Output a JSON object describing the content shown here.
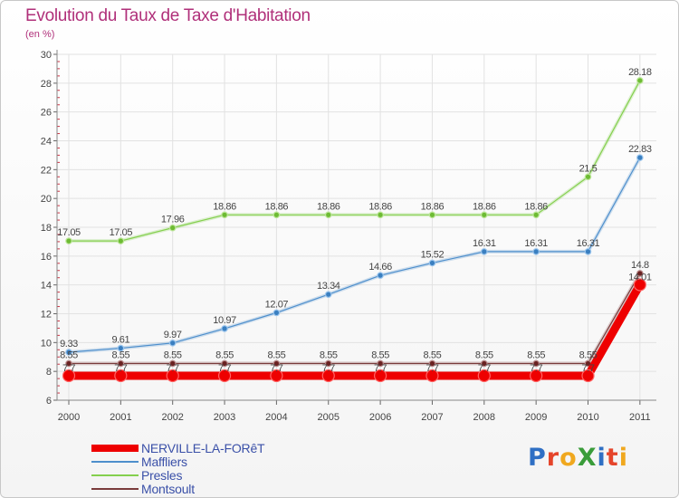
{
  "header": {
    "title": "Evolution du Taux de Taxe d'Habitation",
    "subtitle": "(en %)"
  },
  "logo": {
    "text": "ProXiti",
    "colors": [
      "#2f6fc4",
      "#e5452b",
      "#f0a81f",
      "#3a9c3a",
      "#2f6fc4",
      "#e5452b",
      "#f0a81f"
    ]
  },
  "chart_data": {
    "type": "line",
    "title": "Evolution du Taux de Taxe d'Habitation",
    "subtitle": "(en %)",
    "xlabel": "",
    "ylabel": "",
    "x": [
      "2000",
      "2001",
      "2002",
      "2003",
      "2004",
      "2005",
      "2006",
      "2007",
      "2008",
      "2009",
      "2010",
      "2011"
    ],
    "ylim": [
      6,
      30
    ],
    "yticks": [
      6,
      8,
      10,
      12,
      14,
      16,
      18,
      20,
      22,
      24,
      26,
      28,
      30
    ],
    "grid": true,
    "legend_position": "bottom-left",
    "series": [
      {
        "name": "NERVILLE-LA-FORêT",
        "color": "#ee0000",
        "values": [
          7.7,
          7.7,
          7.7,
          7.7,
          7.7,
          7.7,
          7.7,
          7.7,
          7.7,
          7.7,
          7.7,
          14.01
        ],
        "labels": [
          "7.7",
          "7.7",
          "7.7",
          "7.7",
          "7.7",
          "7.7",
          "7.7",
          "7.7",
          "7.7",
          "7.7",
          "7.7",
          "14.01"
        ]
      },
      {
        "name": "Maffliers",
        "color": "#4e8fcc",
        "values": [
          9.33,
          9.61,
          9.97,
          10.97,
          12.07,
          13.34,
          14.66,
          15.52,
          16.31,
          16.31,
          16.31,
          22.83
        ],
        "labels": [
          "9.33",
          "9.61",
          "9.97",
          "10.97",
          "12.07",
          "13.34",
          "14.66",
          "15.52",
          "16.31",
          "16.31",
          "16.31",
          "22.83"
        ]
      },
      {
        "name": "Presles",
        "color": "#84cf4e",
        "values": [
          17.05,
          17.05,
          17.96,
          18.86,
          18.86,
          18.86,
          18.86,
          18.86,
          18.86,
          18.86,
          21.5,
          28.18
        ],
        "labels": [
          "17.05",
          "17.05",
          "17.96",
          "18.86",
          "18.86",
          "18.86",
          "18.86",
          "18.86",
          "18.86",
          "18.86",
          "21.5",
          "28.18"
        ]
      },
      {
        "name": "Montsoult",
        "color": "#7a3b3b",
        "values": [
          8.55,
          8.55,
          8.55,
          8.55,
          8.55,
          8.55,
          8.55,
          8.55,
          8.55,
          8.55,
          8.55,
          14.8
        ],
        "labels": [
          "8.55",
          "8.55",
          "8.55",
          "8.55",
          "8.55",
          "8.55",
          "8.55",
          "8.55",
          "8.55",
          "8.55",
          "8.55",
          "14.8"
        ]
      }
    ]
  }
}
